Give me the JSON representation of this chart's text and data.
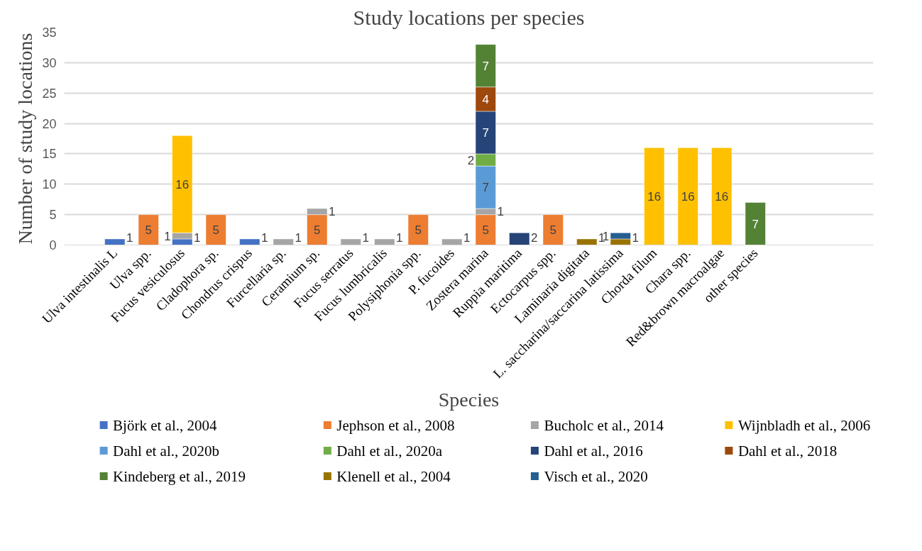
{
  "chart_data": {
    "type": "bar",
    "stacked": true,
    "title": "Study locations per species",
    "xlabel": "Species",
    "ylabel": "Number of study locations",
    "categories": [
      null,
      "Ulva intestinalis L",
      "Ulva spp.",
      "Fucus vesiculosus",
      "Cladophora sp.",
      "Chondrus crispus",
      "Furcellaria sp.",
      "Ceramium sp.",
      "Fucus serratus",
      "Fucus lumbricalis",
      "Polysiphonia spp.",
      "P. fucoides",
      "Zostera marina",
      "Ruppia maritima",
      "Ectocarpus spp.",
      "Laminaria digitata",
      "L. saccharina/saccarina latissima",
      "Chorda filum",
      "Chara spp.",
      "Red&brown macroalgae",
      "other species",
      null,
      null,
      null
    ],
    "series": [
      {
        "name": "Björk et al., 2004",
        "color": "#4472c4",
        "values": [
          null,
          1,
          null,
          1,
          null,
          1,
          null,
          null,
          null,
          null,
          null,
          null,
          null,
          null,
          null,
          null,
          null,
          null,
          null,
          null,
          null,
          null,
          null,
          null
        ]
      },
      {
        "name": "Jephson et al., 2008",
        "color": "#ed7d31",
        "values": [
          null,
          null,
          5,
          null,
          5,
          null,
          null,
          5,
          null,
          null,
          5,
          null,
          5,
          null,
          5,
          null,
          null,
          null,
          null,
          null,
          null,
          null,
          null,
          null
        ]
      },
      {
        "name": "Bucholc et al., 2014",
        "color": "#a5a5a5",
        "values": [
          null,
          null,
          null,
          1,
          null,
          null,
          1,
          1,
          1,
          1,
          null,
          1,
          1,
          null,
          null,
          null,
          null,
          null,
          null,
          null,
          null,
          null,
          null,
          null
        ]
      },
      {
        "name": "Wijnbladh et al., 2006",
        "color": "#ffc000",
        "values": [
          null,
          null,
          null,
          16,
          null,
          null,
          null,
          null,
          null,
          null,
          null,
          null,
          null,
          null,
          null,
          null,
          null,
          16,
          16,
          16,
          null,
          null,
          null,
          null
        ]
      },
      {
        "name": "Dahl et al., 2020b",
        "color": "#5b9bd5",
        "values": [
          null,
          null,
          null,
          null,
          null,
          null,
          null,
          null,
          null,
          null,
          null,
          null,
          7,
          null,
          null,
          null,
          null,
          null,
          null,
          null,
          null,
          null,
          null,
          null
        ]
      },
      {
        "name": "Dahl et al., 2020a",
        "color": "#70ad47",
        "values": [
          null,
          null,
          null,
          null,
          null,
          null,
          null,
          null,
          null,
          null,
          null,
          null,
          2,
          null,
          null,
          null,
          null,
          null,
          null,
          null,
          null,
          null,
          null,
          null
        ]
      },
      {
        "name": "Dahl et al., 2016",
        "color": "#264478",
        "values": [
          null,
          null,
          null,
          null,
          null,
          null,
          null,
          null,
          null,
          null,
          null,
          null,
          7,
          2,
          null,
          null,
          null,
          null,
          null,
          null,
          null,
          null,
          null,
          null
        ]
      },
      {
        "name": "Dahl et al., 2018",
        "color": "#9e480e",
        "values": [
          null,
          null,
          null,
          null,
          null,
          null,
          null,
          null,
          null,
          null,
          null,
          null,
          4,
          null,
          null,
          null,
          null,
          null,
          null,
          null,
          null,
          null,
          null,
          null
        ]
      },
      {
        "name": "Kindeberg et al., 2019",
        "color": "#548235",
        "values": [
          null,
          null,
          null,
          null,
          null,
          null,
          null,
          null,
          null,
          null,
          null,
          null,
          7,
          null,
          null,
          null,
          null,
          null,
          null,
          null,
          7,
          null,
          null,
          null
        ]
      },
      {
        "name": "Klenell et al., 2004",
        "color": "#997300",
        "values": [
          null,
          null,
          null,
          null,
          null,
          null,
          null,
          null,
          null,
          null,
          null,
          null,
          null,
          null,
          null,
          1,
          1,
          null,
          null,
          null,
          null,
          null,
          null,
          null
        ]
      },
      {
        "name": "Visch et al., 2020",
        "color": "#255e91",
        "values": [
          null,
          null,
          null,
          null,
          null,
          null,
          null,
          null,
          null,
          null,
          null,
          null,
          null,
          null,
          null,
          null,
          1,
          null,
          null,
          null,
          null,
          null,
          null,
          null
        ]
      }
    ],
    "ylim": [
      0,
      35
    ],
    "yticks": [
      0,
      5,
      10,
      15,
      20,
      25,
      30,
      35
    ],
    "grid": "y",
    "legend": "bottom",
    "data_labels": true
  }
}
